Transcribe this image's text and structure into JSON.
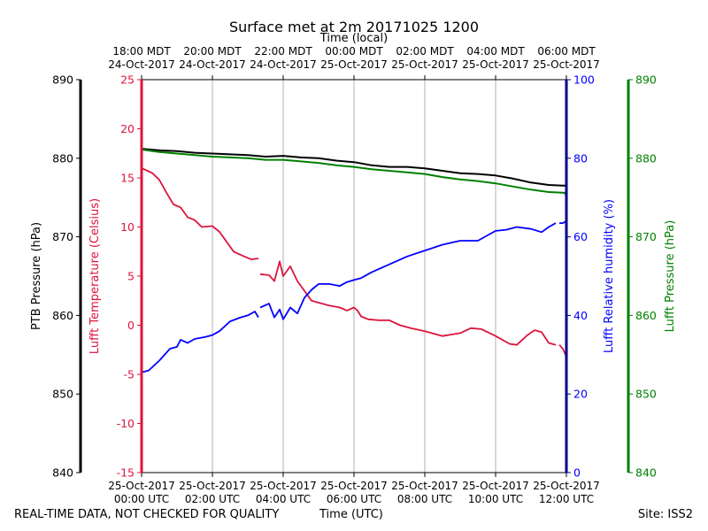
{
  "colors": {
    "ptb": "#000000",
    "temperature": "#dc143c",
    "humidity": "#0000ff",
    "lufft_pressure": "#008000",
    "grid": "#b0b0b0",
    "temperature_axis": "#dc143c",
    "humidity_axis": "#00008b"
  },
  "chart_data": {
    "type": "line",
    "title": "Surface met at 2m 20171025 1200",
    "top_axis_label": "Time (local)",
    "xlabel": "Time (UTC)",
    "x_range_hours_utc": [
      0,
      12
    ],
    "grid": true,
    "x_ticks_bottom": [
      {
        "hour": 0,
        "date": "25-Oct-2017",
        "time": "00:00 UTC"
      },
      {
        "hour": 2,
        "date": "25-Oct-2017",
        "time": "02:00 UTC"
      },
      {
        "hour": 4,
        "date": "25-Oct-2017",
        "time": "04:00 UTC"
      },
      {
        "hour": 6,
        "date": "25-Oct-2017",
        "time": "06:00 UTC"
      },
      {
        "hour": 8,
        "date": "25-Oct-2017",
        "time": "08:00 UTC"
      },
      {
        "hour": 10,
        "date": "25-Oct-2017",
        "time": "10:00 UTC"
      },
      {
        "hour": 12,
        "date": "25-Oct-2017",
        "time": "12:00 UTC"
      }
    ],
    "x_ticks_top": [
      {
        "hour": 0,
        "time": "18:00 MDT",
        "date": "24-Oct-2017"
      },
      {
        "hour": 2,
        "time": "20:00 MDT",
        "date": "24-Oct-2017"
      },
      {
        "hour": 4,
        "time": "22:00 MDT",
        "date": "24-Oct-2017"
      },
      {
        "hour": 6,
        "time": "00:00 MDT",
        "date": "25-Oct-2017"
      },
      {
        "hour": 8,
        "time": "02:00 MDT",
        "date": "25-Oct-2017"
      },
      {
        "hour": 10,
        "time": "04:00 MDT",
        "date": "25-Oct-2017"
      },
      {
        "hour": 12,
        "time": "06:00 MDT",
        "date": "25-Oct-2017"
      }
    ],
    "axes": {
      "ptb_pressure": {
        "label": "PTB Pressure (hPa)",
        "ylim": [
          840,
          890
        ],
        "ticks": [
          "840",
          "850",
          "860",
          "870",
          "880",
          "890"
        ]
      },
      "temperature": {
        "label": "Lufft Temperature (Celsius)",
        "ylim": [
          -15,
          25
        ],
        "ticks": [
          "-15",
          "-10",
          "-5",
          "0",
          "5",
          "10",
          "15",
          "20",
          "25"
        ]
      },
      "humidity": {
        "label": "Lufft Relative humidity (%)",
        "ylim": [
          0,
          100
        ],
        "ticks": [
          "0",
          "20",
          "40",
          "60",
          "80",
          "100"
        ]
      },
      "lufft_pressure": {
        "label": "Lufft Pressure (hPa)",
        "ylim": [
          840,
          890
        ],
        "ticks": [
          "840",
          "850",
          "860",
          "870",
          "880",
          "890"
        ]
      }
    },
    "series": [
      {
        "key": "ptb",
        "axis": "ptb_pressure",
        "segments": [
          [
            [
              0,
              881.2
            ],
            [
              0.5,
              881.0
            ],
            [
              1,
              880.9
            ],
            [
              1.5,
              880.7
            ],
            [
              2,
              880.6
            ],
            [
              2.5,
              880.5
            ],
            [
              3,
              880.4
            ],
            [
              3.5,
              880.2
            ],
            [
              4,
              880.3
            ],
            [
              4.5,
              880.1
            ],
            [
              5,
              880.0
            ],
            [
              5.5,
              879.7
            ],
            [
              6,
              879.5
            ],
            [
              6.5,
              879.1
            ],
            [
              7,
              878.9
            ],
            [
              7.5,
              878.9
            ],
            [
              8,
              878.7
            ],
            [
              8.5,
              878.4
            ],
            [
              9,
              878.1
            ],
            [
              9.5,
              878.0
            ],
            [
              10,
              877.8
            ],
            [
              10.5,
              877.4
            ],
            [
              11,
              876.9
            ],
            [
              11.5,
              876.6
            ],
            [
              12,
              876.5
            ]
          ]
        ]
      },
      {
        "key": "lufft_pressure",
        "axis": "lufft_pressure",
        "segments": [
          [
            [
              0,
              881.1
            ],
            [
              0.5,
              880.8
            ],
            [
              1,
              880.6
            ],
            [
              1.5,
              880.4
            ],
            [
              2,
              880.2
            ],
            [
              2.5,
              880.1
            ],
            [
              3,
              880.0
            ],
            [
              3.5,
              879.8
            ],
            [
              4,
              879.8
            ],
            [
              4.5,
              879.6
            ],
            [
              5,
              879.4
            ],
            [
              5.5,
              879.1
            ],
            [
              6,
              878.9
            ],
            [
              6.5,
              878.6
            ],
            [
              7,
              878.4
            ],
            [
              7.5,
              878.2
            ],
            [
              8,
              878.0
            ],
            [
              8.5,
              877.6
            ],
            [
              9,
              877.3
            ],
            [
              9.5,
              877.1
            ],
            [
              10,
              876.8
            ],
            [
              10.5,
              876.4
            ],
            [
              11,
              876.0
            ],
            [
              11.5,
              875.7
            ],
            [
              11.95,
              875.6
            ],
            [
              12,
              875.2
            ]
          ]
        ]
      },
      {
        "key": "temperature",
        "axis": "temperature",
        "segments": [
          [
            [
              0,
              16.0
            ],
            [
              0.3,
              15.5
            ],
            [
              0.5,
              14.8
            ],
            [
              0.7,
              13.5
            ],
            [
              0.9,
              12.3
            ],
            [
              1.1,
              12.0
            ],
            [
              1.3,
              11.0
            ],
            [
              1.5,
              10.7
            ],
            [
              1.7,
              10.0
            ],
            [
              2.0,
              10.1
            ],
            [
              2.2,
              9.5
            ],
            [
              2.4,
              8.5
            ],
            [
              2.6,
              7.5
            ],
            [
              2.9,
              7.0
            ],
            [
              3.1,
              6.7
            ],
            [
              3.3,
              6.8
            ]
          ],
          [
            [
              3.35,
              5.2
            ],
            [
              3.6,
              5.1
            ],
            [
              3.75,
              4.5
            ],
            [
              3.9,
              6.5
            ],
            [
              4.0,
              5.0
            ],
            [
              4.2,
              6.0
            ],
            [
              4.4,
              4.5
            ],
            [
              4.6,
              3.5
            ],
            [
              4.8,
              2.5
            ],
            [
              5.0,
              2.3
            ],
            [
              5.3,
              2.0
            ],
            [
              5.6,
              1.8
            ],
            [
              5.8,
              1.5
            ],
            [
              6.0,
              1.8
            ],
            [
              6.1,
              1.5
            ],
            [
              6.2,
              0.9
            ],
            [
              6.4,
              0.6
            ],
            [
              6.7,
              0.5
            ],
            [
              7.0,
              0.5
            ],
            [
              7.3,
              0.0
            ],
            [
              7.6,
              -0.3
            ],
            [
              8.0,
              -0.6
            ],
            [
              8.5,
              -1.1
            ],
            [
              9.0,
              -0.8
            ],
            [
              9.3,
              -0.3
            ],
            [
              9.6,
              -0.4
            ],
            [
              10.0,
              -1.1
            ],
            [
              10.4,
              -1.9
            ],
            [
              10.6,
              -2.0
            ],
            [
              10.9,
              -1.0
            ],
            [
              11.1,
              -0.5
            ],
            [
              11.3,
              -0.7
            ],
            [
              11.5,
              -1.8
            ],
            [
              11.7,
              -2.0
            ]
          ],
          [
            [
              11.8,
              -2.0
            ],
            [
              11.9,
              -2.4
            ],
            [
              12.0,
              -3.2
            ]
          ]
        ]
      },
      {
        "key": "humidity",
        "axis": "humidity",
        "segments": [
          [
            [
              0,
              25.5
            ],
            [
              0.2,
              26.0
            ],
            [
              0.5,
              28.5
            ],
            [
              0.8,
              31.5
            ],
            [
              1.0,
              32.0
            ],
            [
              1.1,
              33.8
            ],
            [
              1.3,
              33.0
            ],
            [
              1.5,
              34.0
            ],
            [
              1.8,
              34.5
            ],
            [
              2.0,
              35.0
            ],
            [
              2.2,
              36.0
            ],
            [
              2.5,
              38.5
            ],
            [
              2.8,
              39.5
            ],
            [
              3.0,
              40.0
            ],
            [
              3.2,
              41.0
            ],
            [
              3.3,
              39.5
            ]
          ],
          [
            [
              3.35,
              42.0
            ],
            [
              3.6,
              43.0
            ],
            [
              3.75,
              39.5
            ],
            [
              3.9,
              41.5
            ],
            [
              4.0,
              39.0
            ],
            [
              4.2,
              42.0
            ],
            [
              4.4,
              40.5
            ],
            [
              4.6,
              44.5
            ],
            [
              4.8,
              46.5
            ],
            [
              5.0,
              48.0
            ],
            [
              5.3,
              48.0
            ],
            [
              5.6,
              47.5
            ],
            [
              5.8,
              48.5
            ],
            [
              6.0,
              49.0
            ],
            [
              6.2,
              49.5
            ],
            [
              6.5,
              51.0
            ],
            [
              7.0,
              53.0
            ],
            [
              7.5,
              55.0
            ],
            [
              8.0,
              56.5
            ],
            [
              8.5,
              58.0
            ],
            [
              9.0,
              59.0
            ],
            [
              9.5,
              59.0
            ],
            [
              10.0,
              61.5
            ],
            [
              10.3,
              61.8
            ],
            [
              10.6,
              62.5
            ],
            [
              11.0,
              62.0
            ],
            [
              11.3,
              61.2
            ],
            [
              11.5,
              62.5
            ],
            [
              11.7,
              63.5
            ]
          ],
          [
            [
              11.8,
              63.5
            ],
            [
              11.9,
              63.5
            ],
            [
              12.0,
              64.0
            ]
          ]
        ]
      }
    ]
  },
  "footer": {
    "quality_note": "REAL-TIME DATA, NOT CHECKED FOR QUALITY",
    "xlabel": "Time (UTC)",
    "site": "Site: ISS2"
  }
}
